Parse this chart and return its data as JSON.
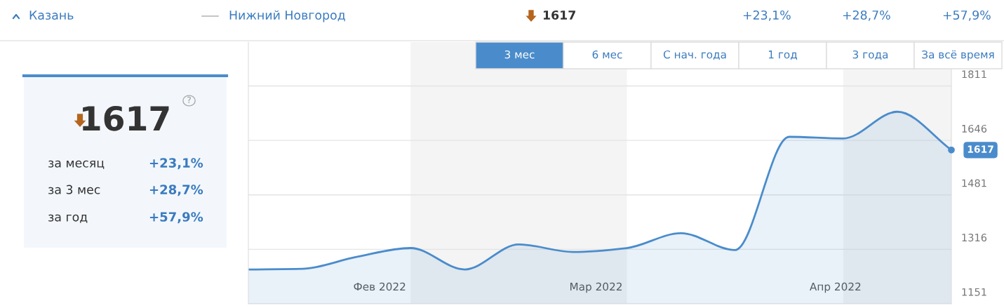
{
  "chart_data": [
    {
      "type": "other",
      "annotations": [
        "Казань",
        "Нижний Новгород",
        "1617",
        "+23,1%",
        "+28,7%",
        "+57,9%"
      ]
    },
    {
      "type": "other",
      "title": "1617",
      "annotations": [
        "?",
        "за месяц",
        "+23,1%",
        "за 3 мес",
        "+28,7%",
        "за год",
        "+57,9%"
      ]
    },
    {
      "type": "area",
      "x": [
        "2022-01-15",
        "2022-01-22",
        "2022-01-29",
        "2022-02-05",
        "2022-02-12",
        "2022-02-19",
        "2022-02-26",
        "2022-03-05",
        "2022-03-12",
        "2022-03-19",
        "2022-03-26",
        "2022-04-02",
        "2022-04-09",
        "2022-04-16"
      ],
      "series": [
        {
          "color": "#4a8ccb",
          "values": [
            1255,
            1257,
            1293,
            1320,
            1255,
            1331,
            1308,
            1320,
            1365,
            1314,
            1657,
            1652,
            1733,
            1617
          ]
        }
      ],
      "xlim": [
        "2022-01-15",
        "2022-04-16"
      ],
      "xticks": [
        {
          "value": "2022-02-01",
          "label": "Фев 2022"
        },
        {
          "value": "2022-03-01",
          "label": "Мар 2022"
        },
        {
          "value": "2022-04-01",
          "label": "Апр 2022"
        }
      ],
      "ylim": [
        1151,
        1944
      ],
      "yticks": [
        1151,
        1316,
        1481,
        1646,
        1811
      ],
      "grid": "y",
      "marker": "none",
      "bands": [
        {
          "axis": "x",
          "from": "2022-02-05",
          "to": "2022-03-05",
          "color": "#f4f4f4"
        },
        {
          "axis": "x",
          "from": "2022-04-02",
          "to": "2022-04-16",
          "color": "#f4f4f4"
        }
      ],
      "annotations": [
        "3 мес",
        "6 мес",
        "С нач. года",
        "1 год",
        "3 года",
        "За всё время",
        {
          "text": "1617",
          "x": "2022-04-16",
          "y": 1617
        }
      ]
    }
  ]
}
